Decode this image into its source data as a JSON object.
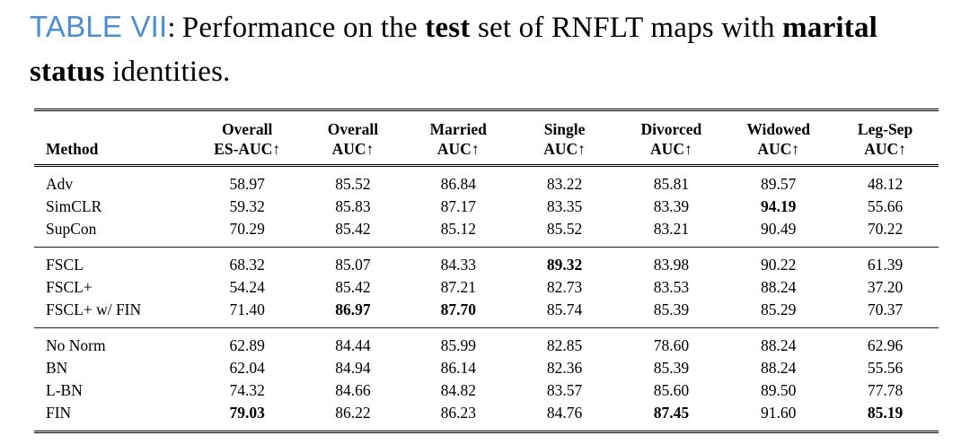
{
  "caption": {
    "label": "TABLE VII",
    "colon": ":",
    "part1": "Performance on the",
    "bold1": " test ",
    "part2": "set of RNFLT maps with",
    "bold2": " marital status ",
    "part3": "identities."
  },
  "table": {
    "columns": [
      {
        "line1": "",
        "line2": "Method"
      },
      {
        "line1": "Overall",
        "line2": "ES-AUC↑"
      },
      {
        "line1": "Overall",
        "line2": "AUC↑"
      },
      {
        "line1": "Married",
        "line2": "AUC↑"
      },
      {
        "line1": "Single",
        "line2": "AUC↑"
      },
      {
        "line1": "Divorced",
        "line2": "AUC↑"
      },
      {
        "line1": "Widowed",
        "line2": "AUC↑"
      },
      {
        "line1": "Leg-Sep",
        "line2": "AUC↑"
      }
    ],
    "groups": [
      {
        "rows": [
          {
            "method": "Adv",
            "values": [
              "58.97",
              "85.52",
              "86.84",
              "83.22",
              "85.81",
              "89.57",
              "48.12"
            ],
            "bold": []
          },
          {
            "method": "SimCLR",
            "values": [
              "59.32",
              "85.83",
              "87.17",
              "83.35",
              "83.39",
              "94.19",
              "55.66"
            ],
            "bold": [
              5
            ]
          },
          {
            "method": "SupCon",
            "values": [
              "70.29",
              "85.42",
              "85.12",
              "85.52",
              "83.21",
              "90.49",
              "70.22"
            ],
            "bold": []
          }
        ]
      },
      {
        "rows": [
          {
            "method": "FSCL",
            "values": [
              "68.32",
              "85.07",
              "84.33",
              "89.32",
              "83.98",
              "90.22",
              "61.39"
            ],
            "bold": [
              3
            ]
          },
          {
            "method": "FSCL+",
            "values": [
              "54.24",
              "85.42",
              "87.21",
              "82.73",
              "83.53",
              "88.24",
              "37.20"
            ],
            "bold": []
          },
          {
            "method": "FSCL+ w/ FIN",
            "values": [
              "71.40",
              "86.97",
              "87.70",
              "85.74",
              "85.39",
              "85.29",
              "70.37"
            ],
            "bold": [
              1,
              2
            ]
          }
        ]
      },
      {
        "rows": [
          {
            "method": "No Norm",
            "values": [
              "62.89",
              "84.44",
              "85.99",
              "82.85",
              "78.60",
              "88.24",
              "62.96"
            ],
            "bold": []
          },
          {
            "method": "BN",
            "values": [
              "62.04",
              "84.94",
              "86.14",
              "82.36",
              "85.39",
              "88.24",
              "55.56"
            ],
            "bold": []
          },
          {
            "method": "L-BN",
            "values": [
              "74.32",
              "84.66",
              "84.82",
              "83.57",
              "85.60",
              "89.50",
              "77.78"
            ],
            "bold": []
          },
          {
            "method": "FIN",
            "values": [
              "79.03",
              "86.22",
              "86.23",
              "84.76",
              "87.45",
              "91.60",
              "85.19"
            ],
            "bold": [
              0,
              4,
              6
            ]
          }
        ]
      }
    ]
  }
}
